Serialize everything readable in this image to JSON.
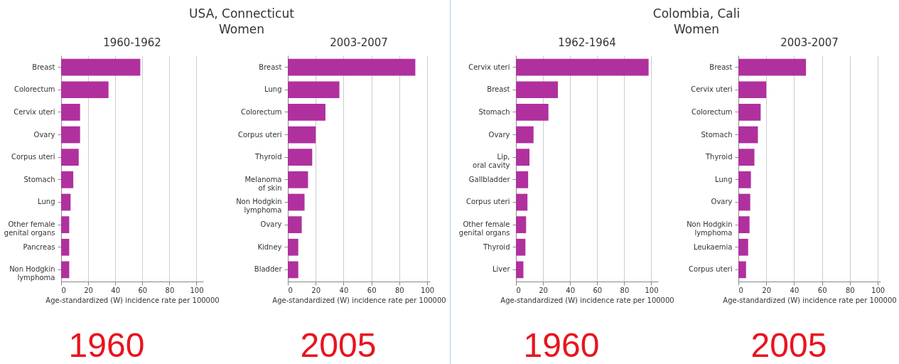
{
  "chart_data": [
    {
      "type": "bar",
      "orientation": "horizontal",
      "title": "1960-1962",
      "annotations": [
        "USA, Connecticut\nWomen",
        "1960"
      ],
      "xlabel": "Age-standardized (W) incidence rate per 100000",
      "categories": [
        "Breast",
        "Colorectum",
        "Cervix uteri",
        "Ovary",
        "Corpus uteri",
        "Stomach",
        "Lung",
        "Other female\ngenital organs",
        "Pancreas",
        "Non Hodgkin\nlymphoma"
      ],
      "values": [
        58.5,
        35,
        14,
        14,
        13,
        9,
        7,
        6,
        6,
        6
      ],
      "color": "#b0309e",
      "xlim": [
        0,
        105
      ],
      "xticks": [
        0,
        20,
        40,
        60,
        80,
        100
      ],
      "grid": "x"
    },
    {
      "type": "bar",
      "orientation": "horizontal",
      "title": "2003-2007",
      "annotations": [
        "2005"
      ],
      "xlabel": "Age-standardized (W) incidence rate per 100000",
      "categories": [
        "Breast",
        "Lung",
        "Colorectum",
        "Corpus uteri",
        "Thyroid",
        "Melanoma\nof skin",
        "Non Hodgkin\nlymphoma",
        "Ovary",
        "Kidney",
        "Bladder"
      ],
      "values": [
        91.5,
        37,
        27,
        20,
        17.5,
        14.5,
        12,
        10,
        7.5,
        7.5
      ],
      "color": "#b0309e",
      "xlim": [
        0,
        102
      ],
      "xticks": [
        0,
        20,
        40,
        60,
        80,
        100
      ],
      "grid": "x"
    },
    {
      "type": "bar",
      "orientation": "horizontal",
      "title": "1962-1964",
      "annotations": [
        "Colombia, Cali\nWomen",
        "1960"
      ],
      "xlabel": "Age-standardized (W) incidence rate per 100000",
      "categories": [
        "Cervix uteri",
        "Breast",
        "Stomach",
        "Ovary",
        "Lip,\noral cavity",
        "Gallbladder",
        "Corpus uteri",
        "Other female\ngenital organs",
        "Thyroid",
        "Liver"
      ],
      "values": [
        98,
        31,
        24,
        13,
        10,
        9,
        8.5,
        7.5,
        7,
        5.5
      ],
      "color": "#b0309e",
      "xlim": [
        0,
        105
      ],
      "xticks": [
        0,
        20,
        40,
        60,
        80,
        100
      ],
      "grid": "x"
    },
    {
      "type": "bar",
      "orientation": "horizontal",
      "title": "2003-2007",
      "annotations": [
        "2005"
      ],
      "xlabel": "Age-standardized (W) incidence rate per 100000",
      "categories": [
        "Breast",
        "Cervix uteri",
        "Colorectum",
        "Stomach",
        "Thyroid",
        "Lung",
        "Ovary",
        "Non Hodgkin\nlymphoma",
        "Leukaemia",
        "Corpus uteri"
      ],
      "values": [
        48.5,
        20,
        16,
        14,
        11.5,
        9,
        8.5,
        8,
        7,
        5.5
      ],
      "color": "#b0309e",
      "xlim": [
        0,
        102
      ],
      "xticks": [
        0,
        20,
        40,
        60,
        80,
        100
      ],
      "grid": "x"
    }
  ]
}
